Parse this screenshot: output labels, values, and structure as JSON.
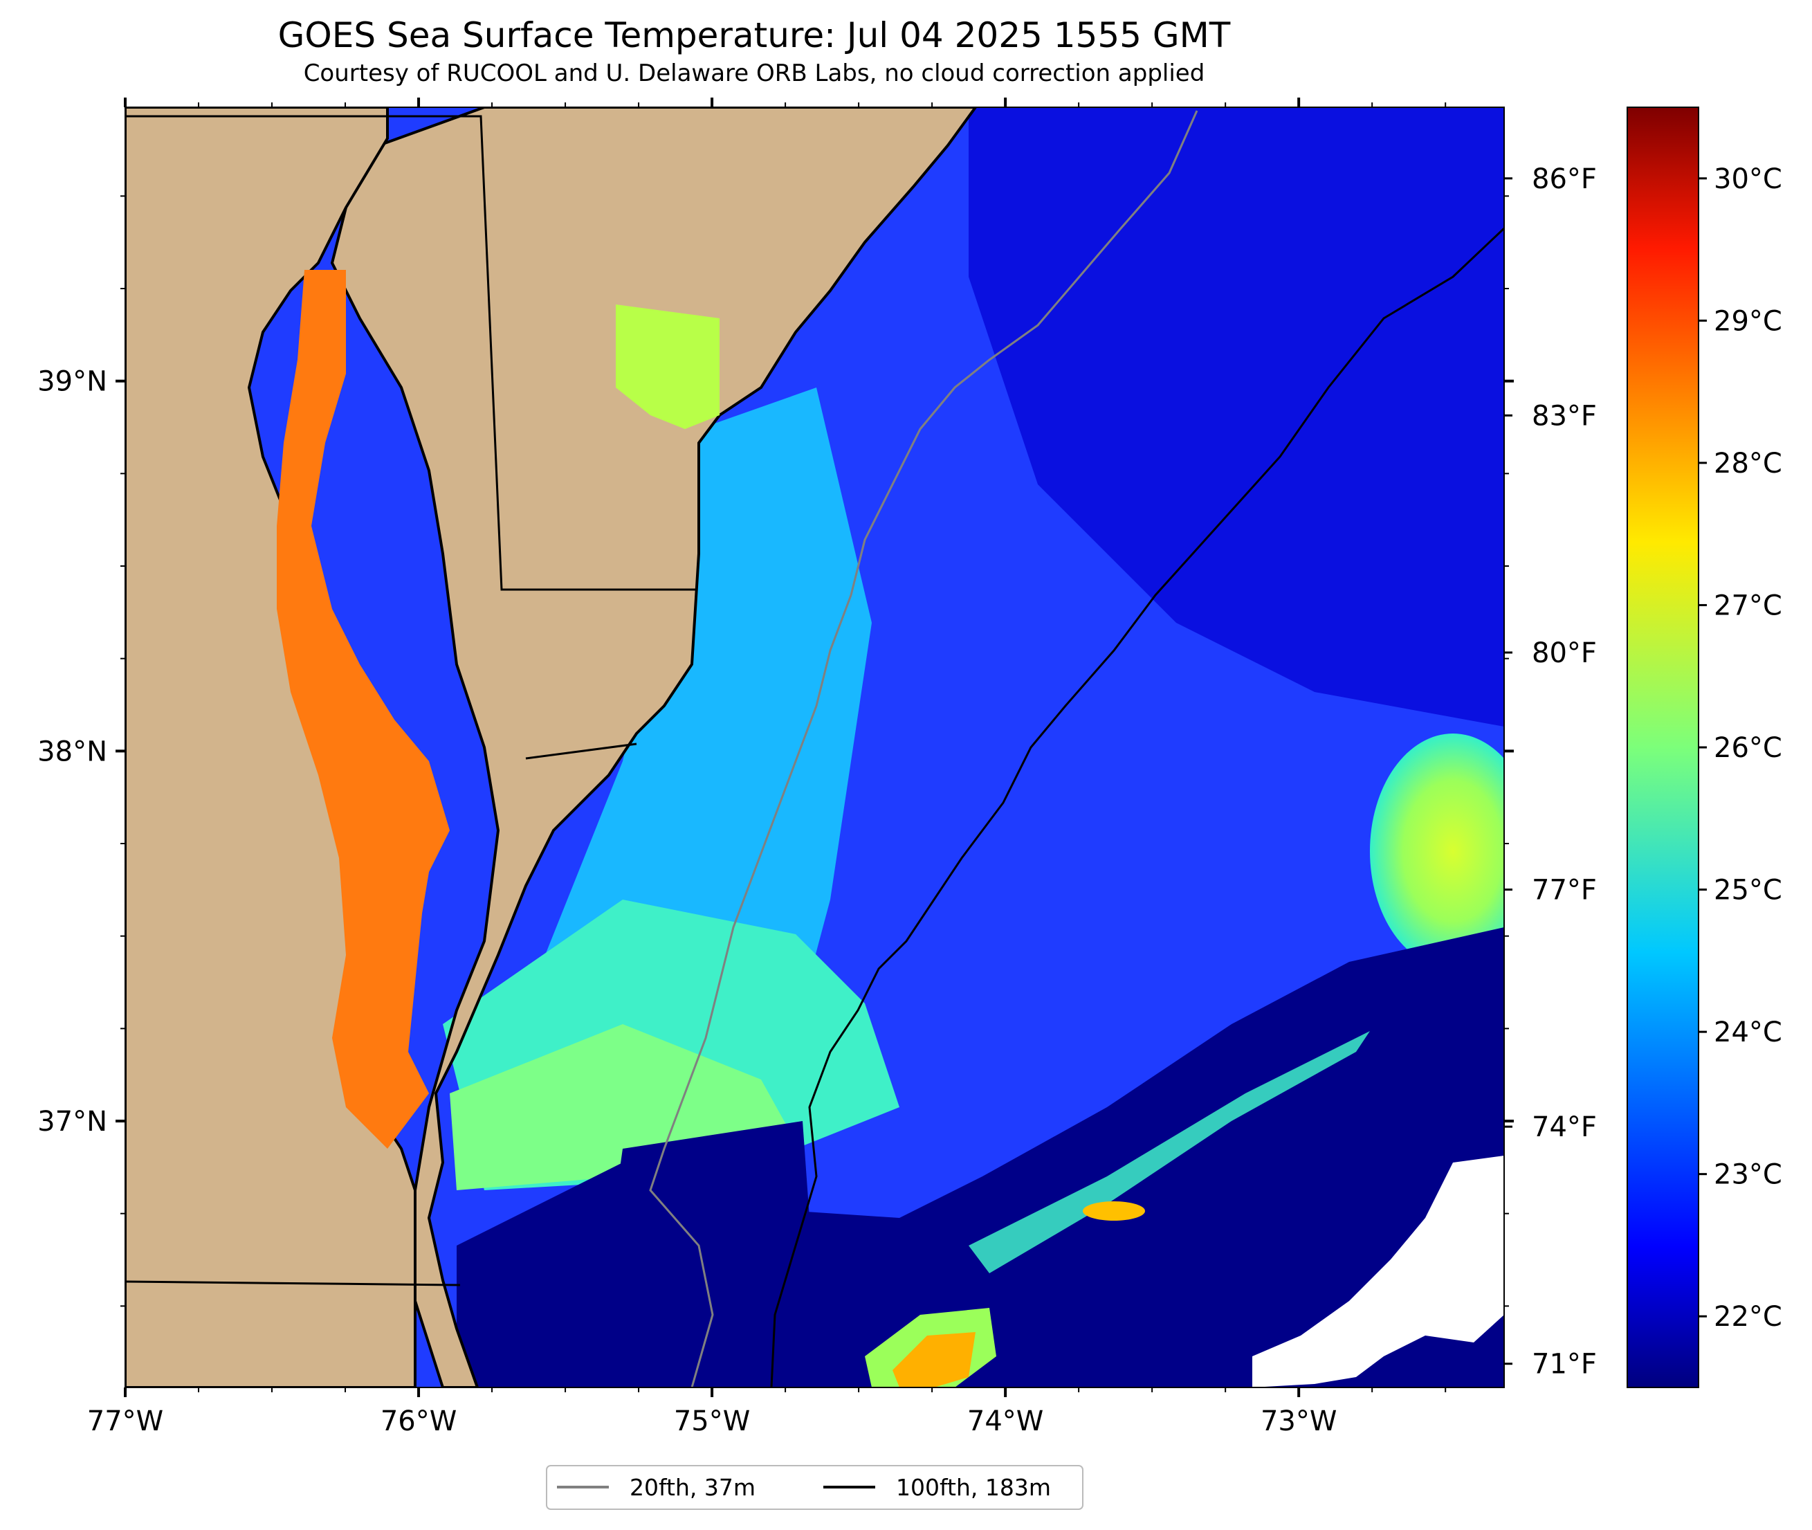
{
  "title": "GOES Sea Surface Temperature: Jul 04 2025 1555 GMT",
  "subtitle": "Courtesy of RUCOOL and U. Delaware ORB Labs, no cloud correction applied",
  "map": {
    "lon_range": [
      -77.0,
      -72.3
    ],
    "lat_range": [
      36.28,
      39.74
    ],
    "lon_ticks": [
      {
        "value": -77,
        "label": "77°W"
      },
      {
        "value": -76,
        "label": "76°W"
      },
      {
        "value": -75,
        "label": "75°W"
      },
      {
        "value": -74,
        "label": "74°W"
      },
      {
        "value": -73,
        "label": "73°W"
      }
    ],
    "lat_ticks": [
      {
        "value": 39,
        "label": "39°N"
      },
      {
        "value": 38,
        "label": "38°N"
      },
      {
        "value": 37,
        "label": "37°N"
      }
    ],
    "fahrenheit_ticks": [
      {
        "value": 86,
        "label": "86°F"
      },
      {
        "value": 83,
        "label": "83°F"
      },
      {
        "value": 80,
        "label": "80°F"
      },
      {
        "value": 77,
        "label": "77°F"
      },
      {
        "value": 74,
        "label": "74°F"
      },
      {
        "value": 71,
        "label": "71°F"
      }
    ],
    "colors": {
      "land": "#d2b48c",
      "cloud": "#ffffff",
      "isobath_20fth": "#808080",
      "isobath_100fth": "#000000"
    }
  },
  "colorbar": {
    "range_c": [
      21.5,
      30.5
    ],
    "colormap": "jet",
    "ticks": [
      {
        "value": 30,
        "label": "30°C"
      },
      {
        "value": 29,
        "label": "29°C"
      },
      {
        "value": 28,
        "label": "28°C"
      },
      {
        "value": 27,
        "label": "27°C"
      },
      {
        "value": 26,
        "label": "26°C"
      },
      {
        "value": 25,
        "label": "25°C"
      },
      {
        "value": 24,
        "label": "24°C"
      },
      {
        "value": 23,
        "label": "23°C"
      },
      {
        "value": 22,
        "label": "22°C"
      }
    ]
  },
  "legend": {
    "items": [
      {
        "label": "20fth, 37m",
        "color": "#808080"
      },
      {
        "label": "100fth, 183m",
        "color": "#000000"
      }
    ]
  }
}
